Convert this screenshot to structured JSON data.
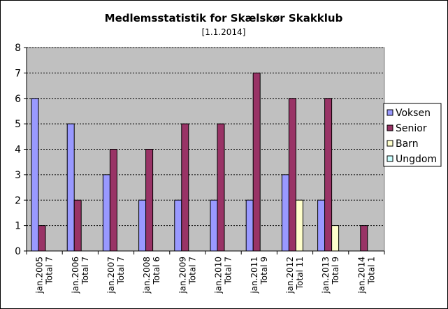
{
  "chart_data": {
    "type": "bar",
    "title": "Medlemsstatistik for Skælskør Skakklub",
    "subtitle": "[1.1.2014]",
    "xlabel": "",
    "ylabel": "",
    "ylim": [
      0,
      8
    ],
    "yticks": [
      0,
      1,
      2,
      3,
      4,
      5,
      6,
      7,
      8
    ],
    "grid": true,
    "legend_position": "right",
    "categories": [
      [
        "jan.2005",
        "Total 7"
      ],
      [
        "jan.2006",
        "Total 7"
      ],
      [
        "jan.2007",
        "Total 7"
      ],
      [
        "jan.2008",
        "Total 6"
      ],
      [
        "jan.2009",
        "Total 7"
      ],
      [
        "jan.2010",
        "Total 7"
      ],
      [
        "jan.2011",
        "Total 9"
      ],
      [
        "jan.2012",
        "Total 11"
      ],
      [
        "jan.2013",
        "Total 9"
      ],
      [
        "jan.2014",
        "Total 1"
      ]
    ],
    "series": [
      {
        "name": "Voksen",
        "color": "#9999ff",
        "values": [
          6,
          5,
          3,
          2,
          2,
          2,
          2,
          3,
          2,
          0
        ]
      },
      {
        "name": "Senior",
        "color": "#993366",
        "values": [
          1,
          2,
          4,
          4,
          5,
          5,
          7,
          6,
          6,
          1
        ]
      },
      {
        "name": "Barn",
        "color": "#ffffcc",
        "values": [
          0,
          0,
          0,
          0,
          0,
          0,
          0,
          2,
          1,
          0
        ]
      },
      {
        "name": "Ungdom",
        "color": "#ccffff",
        "values": [
          0,
          0,
          0,
          0,
          0,
          0,
          0,
          0,
          0,
          0
        ]
      }
    ],
    "plot_background": "#c0c0c0"
  }
}
